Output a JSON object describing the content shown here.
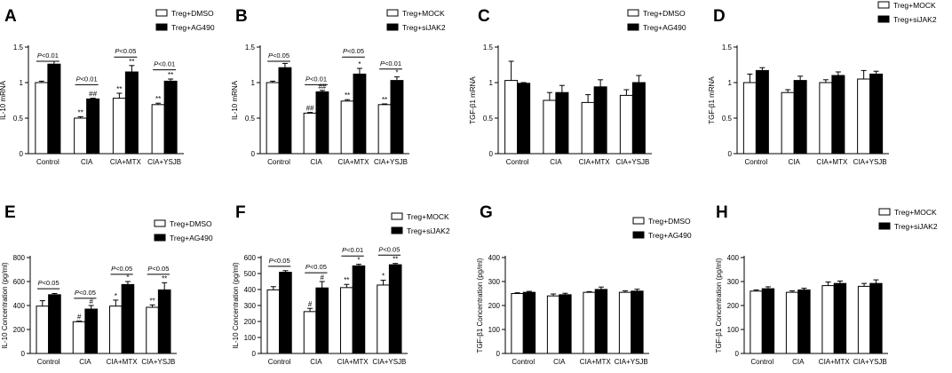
{
  "chart_data": [
    {
      "type": "bar",
      "panel_letter": "A",
      "ylabel": "IL-10 mRNA",
      "ylim": [
        0,
        1.5
      ],
      "yticks": [
        0,
        0.5,
        1,
        1.5
      ],
      "categories": [
        "Control",
        "CIA",
        "CIA+MTX",
        "CIA+YSJB"
      ],
      "series": [
        {
          "name": "Treg+DMSO",
          "fill": "#ffffff",
          "values": [
            1.0,
            0.5,
            0.78,
            0.69
          ],
          "errors": [
            0.02,
            0.02,
            0.07,
            0.02
          ]
        },
        {
          "name": "Treg+AG490",
          "fill": "#000000",
          "values": [
            1.26,
            0.77,
            1.15,
            1.02
          ],
          "errors": [
            0.04,
            0.01,
            0.09,
            0.03
          ]
        }
      ],
      "marks": [
        {
          "text": "**",
          "cat": 1,
          "s": 0
        },
        {
          "text": "##",
          "cat": 1,
          "s": 1
        },
        {
          "text": "**",
          "cat": 2,
          "s": 0
        },
        {
          "text": "**",
          "cat": 2,
          "s": 1
        },
        {
          "text": "**",
          "cat": 3,
          "s": 0
        },
        {
          "text": "**",
          "cat": 3,
          "s": 1
        }
      ],
      "pvalues": [
        {
          "cat": 0,
          "text": "P<0.01",
          "y": 1.3
        },
        {
          "cat": 1,
          "text": "P<0.01",
          "y": 0.97
        },
        {
          "cat": 2,
          "text": "P<0.05",
          "y": 1.36
        },
        {
          "cat": 3,
          "text": "P<0.01",
          "y": 1.18
        }
      ]
    },
    {
      "type": "bar",
      "panel_letter": "B",
      "ylabel": "IL-10 mRNA",
      "ylim": [
        0,
        1.5
      ],
      "yticks": [
        0,
        0.5,
        1,
        1.5
      ],
      "categories": [
        "Control",
        "CIA",
        "CIA+MTX",
        "CIA+YSJB"
      ],
      "series": [
        {
          "name": "Treg+MOCK",
          "fill": "#ffffff",
          "values": [
            1.0,
            0.57,
            0.74,
            0.69
          ],
          "errors": [
            0.02,
            0.01,
            0.02,
            0.01
          ]
        },
        {
          "name": "Treg+siJAK2",
          "fill": "#000000",
          "values": [
            1.21,
            0.87,
            1.12,
            1.03
          ],
          "errors": [
            0.06,
            0.02,
            0.08,
            0.05
          ]
        }
      ],
      "marks": [
        {
          "text": "##",
          "cat": 1,
          "s": 0
        },
        {
          "text": "##",
          "cat": 1,
          "s": 1
        },
        {
          "text": "**",
          "cat": 2,
          "s": 0
        },
        {
          "text": "*",
          "cat": 2,
          "s": 1
        },
        {
          "text": "**",
          "cat": 3,
          "s": 0
        },
        {
          "text": "*",
          "cat": 3,
          "s": 1
        }
      ],
      "pvalues": [
        {
          "cat": 0,
          "text": "P<0.05",
          "y": 1.3
        },
        {
          "cat": 1,
          "text": "P<0.01",
          "y": 0.97
        },
        {
          "cat": 2,
          "text": "P<0.05",
          "y": 1.36
        },
        {
          "cat": 3,
          "text": "P<0.01",
          "y": 1.19
        }
      ]
    },
    {
      "type": "bar",
      "panel_letter": "C",
      "ylabel": "TGF-β1 mRNA",
      "ylim": [
        0,
        1.5
      ],
      "yticks": [
        0,
        0.5,
        1,
        1.5
      ],
      "categories": [
        "Control",
        "CIA",
        "CIA+MTX",
        "CIA+YSJB"
      ],
      "series": [
        {
          "name": "Treg+DMSO",
          "fill": "#ffffff",
          "values": [
            1.03,
            0.75,
            0.72,
            0.82
          ],
          "errors": [
            0.27,
            0.11,
            0.11,
            0.08
          ]
        },
        {
          "name": "Treg+AG490",
          "fill": "#000000",
          "values": [
            0.99,
            0.86,
            0.94,
            1.0
          ],
          "errors": [
            0.01,
            0.1,
            0.1,
            0.1
          ]
        }
      ],
      "marks": [],
      "pvalues": []
    },
    {
      "type": "bar",
      "panel_letter": "D",
      "ylabel": "TGF-β1 mRNA",
      "ylim": [
        0,
        1.5
      ],
      "yticks": [
        0,
        0.5,
        1,
        1.5
      ],
      "categories": [
        "Control",
        "CIA",
        "CIA+MTX",
        "CIA+YSJB"
      ],
      "series": [
        {
          "name": "Treg+MOCK",
          "fill": "#ffffff",
          "values": [
            1.0,
            0.86,
            1.0,
            1.05
          ],
          "errors": [
            0.12,
            0.04,
            0.04,
            0.12
          ]
        },
        {
          "name": "Treg+siJAK2",
          "fill": "#000000",
          "values": [
            1.17,
            1.03,
            1.1,
            1.12
          ],
          "errors": [
            0.04,
            0.06,
            0.05,
            0.04
          ]
        }
      ],
      "marks": [],
      "pvalues": []
    },
    {
      "type": "bar",
      "panel_letter": "E",
      "ylabel": "IL-10 Concentration (pg/ml)",
      "ylim": [
        0,
        800
      ],
      "yticks": [
        0,
        200,
        400,
        600,
        800
      ],
      "categories": [
        "Control",
        "CIA",
        "CIA+MTX",
        "CIA+YSJB"
      ],
      "series": [
        {
          "name": "Treg+DMSO",
          "fill": "#ffffff",
          "values": [
            395,
            265,
            395,
            385
          ],
          "errors": [
            45,
            5,
            50,
            20
          ]
        },
        {
          "name": "Treg+AG490",
          "fill": "#000000",
          "values": [
            490,
            370,
            575,
            530
          ],
          "errors": [
            10,
            30,
            25,
            60
          ]
        }
      ],
      "marks": [
        {
          "text": "#",
          "cat": 1,
          "s": 0
        },
        {
          "text": "#",
          "cat": 1,
          "s": 1
        },
        {
          "text": "*",
          "cat": 2,
          "s": 0
        },
        {
          "text": "*",
          "cat": 2,
          "s": 1
        },
        {
          "text": "**",
          "cat": 3,
          "s": 0
        },
        {
          "text": "**",
          "cat": 3,
          "s": 1
        }
      ],
      "pvalues": [
        {
          "cat": 0,
          "text": "P<0.05",
          "y": 540
        },
        {
          "cat": 1,
          "text": "P<0.05",
          "y": 460
        },
        {
          "cat": 2,
          "text": "P<0.05",
          "y": 660
        },
        {
          "cat": 3,
          "text": "P<0.05",
          "y": 660
        }
      ]
    },
    {
      "type": "bar",
      "panel_letter": "F",
      "ylabel": "IL-10 Concentration (pg/ml)",
      "ylim": [
        0,
        600
      ],
      "yticks": [
        0,
        100,
        200,
        300,
        400,
        500,
        600
      ],
      "categories": [
        "Control",
        "CIA",
        "CIA+MTX",
        "CIA+YSJB"
      ],
      "series": [
        {
          "name": "Treg+MOCK",
          "fill": "#ffffff",
          "values": [
            398,
            262,
            412,
            428
          ],
          "errors": [
            20,
            20,
            20,
            30
          ]
        },
        {
          "name": "Treg+siJAK2",
          "fill": "#000000",
          "values": [
            508,
            410,
            548,
            555
          ],
          "errors": [
            10,
            40,
            10,
            8
          ]
        }
      ],
      "marks": [
        {
          "text": "#",
          "cat": 1,
          "s": 0
        },
        {
          "text": "#",
          "cat": 1,
          "s": 1
        },
        {
          "text": "**",
          "cat": 2,
          "s": 0
        },
        {
          "text": "*",
          "cat": 2,
          "s": 1
        },
        {
          "text": "*",
          "cat": 3,
          "s": 0
        },
        {
          "text": "**",
          "cat": 3,
          "s": 1
        }
      ],
      "pvalues": [
        {
          "cat": 0,
          "text": "P<0.05",
          "y": 545
        },
        {
          "cat": 1,
          "text": "P<0.05",
          "y": 505
        },
        {
          "cat": 2,
          "text": "P<0.01",
          "y": 610
        },
        {
          "cat": 3,
          "text": "P<0.05",
          "y": 615
        }
      ]
    },
    {
      "type": "bar",
      "panel_letter": "G",
      "ylabel": "TGF-β1 Concentration (pg/ml)",
      "ylim": [
        0,
        400
      ],
      "yticks": [
        0,
        100,
        200,
        300,
        400
      ],
      "categories": [
        "Control",
        "CIA",
        "CIA+MTX",
        "CIA+YSJB"
      ],
      "series": [
        {
          "name": "Treg+DMSO",
          "fill": "#ffffff",
          "values": [
            250,
            240,
            255,
            255
          ],
          "errors": [
            3,
            8,
            3,
            6
          ]
        },
        {
          "name": "Treg+AG490",
          "fill": "#000000",
          "values": [
            255,
            245,
            267,
            260
          ],
          "errors": [
            4,
            6,
            10,
            8
          ]
        }
      ],
      "marks": [],
      "pvalues": []
    },
    {
      "type": "bar",
      "panel_letter": "H",
      "ylabel": "TGF-β1 Concentration (pg/ml)",
      "ylim": [
        0,
        400
      ],
      "yticks": [
        0,
        100,
        200,
        300,
        400
      ],
      "categories": [
        "Control",
        "CIA",
        "CIA+MTX",
        "CIA+YSJB"
      ],
      "series": [
        {
          "name": "Treg+MOCK",
          "fill": "#ffffff",
          "values": [
            260,
            255,
            283,
            280
          ],
          "errors": [
            5,
            6,
            15,
            12
          ]
        },
        {
          "name": "Treg+siJAK2",
          "fill": "#000000",
          "values": [
            270,
            265,
            292,
            292
          ],
          "errors": [
            8,
            7,
            10,
            15
          ]
        }
      ],
      "marks": [],
      "pvalues": []
    }
  ]
}
